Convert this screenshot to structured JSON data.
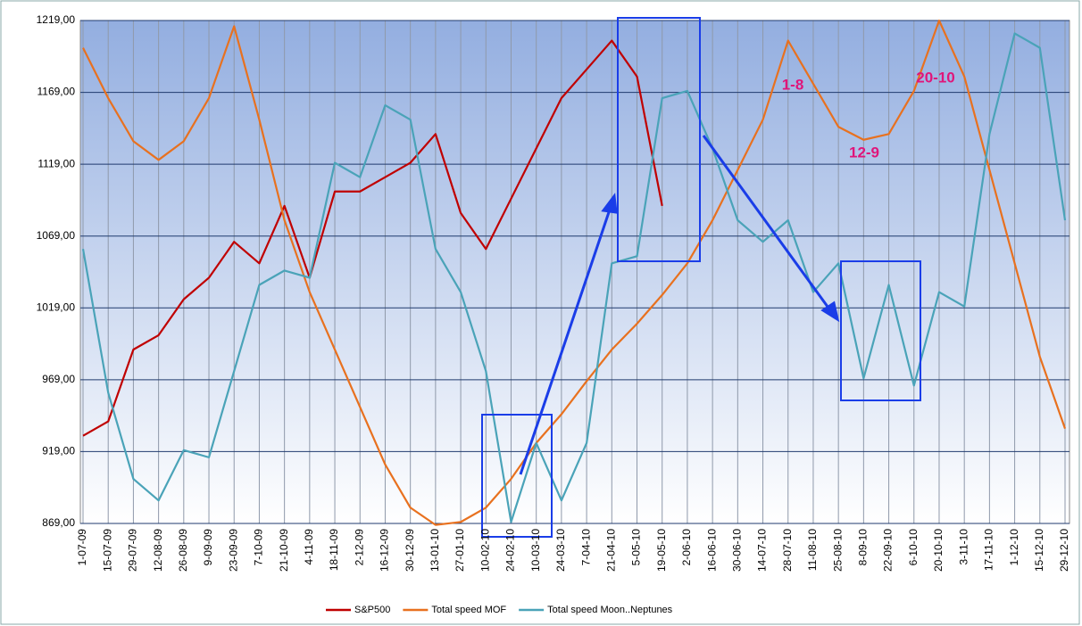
{
  "chart_data": {
    "type": "line",
    "categories": [
      "1-07-09",
      "15-07-09",
      "29-07-09",
      "12-08-09",
      "26-08-09",
      "9-09-09",
      "23-09-09",
      "7-10-09",
      "21-10-09",
      "4-11-09",
      "18-11-09",
      "2-12-09",
      "16-12-09",
      "30-12-09",
      "13-01-10",
      "27-01-10",
      "10-02-10",
      "24-02-10",
      "10-03-10",
      "24-03-10",
      "7-04-10",
      "21-04-10",
      "5-05-10",
      "19-05-10",
      "2-06-10",
      "16-06-10",
      "30-06-10",
      "14-07-10",
      "28-07-10",
      "11-08-10",
      "25-08-10",
      "8-09-10",
      "22-09-10",
      "6-10-10",
      "20-10-10",
      "3-11-10",
      "17-11-10",
      "1-12-10",
      "15-12-10",
      "29-12-10"
    ],
    "series": [
      {
        "name": "S&P500",
        "color": "#c00000",
        "values": [
          930,
          940,
          990,
          1000,
          1025,
          1040,
          1065,
          1050,
          1090,
          1040,
          1100,
          1100,
          1110,
          1120,
          1140,
          1085,
          1060,
          1095,
          1130,
          1165,
          1185,
          1205,
          1180,
          1090,
          null,
          null,
          null,
          null,
          null,
          null,
          null,
          null,
          null,
          null,
          null,
          null,
          null,
          null,
          null,
          null
        ]
      },
      {
        "name": "Total speed MOF",
        "color": "#e8711f",
        "values": [
          1200,
          1165,
          1135,
          1122,
          1135,
          1165,
          1215,
          1150,
          1080,
          1030,
          990,
          950,
          910,
          880,
          868,
          870,
          880,
          900,
          925,
          945,
          968,
          990,
          1008,
          1028,
          1050,
          1080,
          1115,
          1150,
          1205,
          1175,
          1145,
          1136,
          1140,
          1170,
          1219,
          1180,
          1115,
          1050,
          985,
          935
        ]
      },
      {
        "name": "Total speed Moon..Neptunes",
        "color": "#4aa3b8",
        "values": [
          1060,
          960,
          900,
          885,
          920,
          915,
          975,
          1035,
          1045,
          1040,
          1120,
          1110,
          1160,
          1150,
          1060,
          1030,
          975,
          870,
          925,
          885,
          925,
          1050,
          1055,
          1165,
          1170,
          1130,
          1080,
          1065,
          1080,
          1030,
          1050,
          970,
          1035,
          965,
          1030,
          1020,
          1140,
          1210,
          1200,
          1080
        ]
      }
    ],
    "ylim": [
      869,
      1219
    ],
    "yticks": [
      {
        "value": 869,
        "label": "869,00"
      },
      {
        "value": 919,
        "label": "919,00"
      },
      {
        "value": 969,
        "label": "969,00"
      },
      {
        "value": 1019,
        "label": "1019,00"
      },
      {
        "value": 1069,
        "label": "1069,00"
      },
      {
        "value": 1119,
        "label": "1119,00"
      },
      {
        "value": 1169,
        "label": "1169,00"
      },
      {
        "value": 1219,
        "label": "1219,00"
      }
    ],
    "grid": true,
    "legend": "bottom",
    "annotations": [
      "1-8",
      "12-9",
      "20-10"
    ]
  }
}
